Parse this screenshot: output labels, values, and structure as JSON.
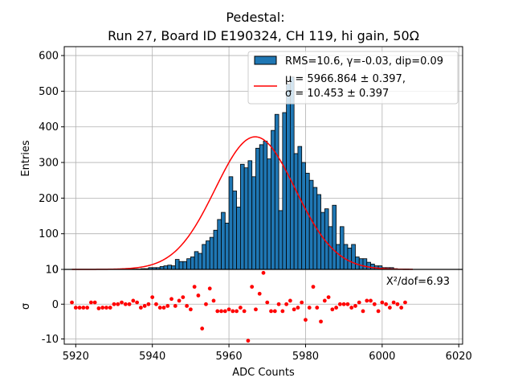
{
  "chart_data": {
    "type": "bar",
    "title_line1": "Pedestal:",
    "title_line2": "Run 27, Board ID E190324, CH 119, hi gain, 50Ω",
    "xlabel": "ADC Counts",
    "ylabel_top": "Entries",
    "ylabel_bottom": "σ",
    "xlim": [
      5917,
      6021
    ],
    "ylim_top": [
      0,
      625
    ],
    "ylim_bottom": [
      -11.5,
      10
    ],
    "xticks": [
      5920,
      5940,
      5960,
      5980,
      6000,
      6020
    ],
    "yticks_top": [
      0,
      100,
      200,
      300,
      400,
      500,
      600
    ],
    "yticks_bottom": [
      -10,
      0,
      10
    ],
    "grid": true,
    "colors": {
      "bar": "#1f77b4",
      "fit": "#ff0000",
      "residual": "#ff0000"
    },
    "legend": {
      "position": "top-right",
      "hist_label": "RMS=10.6, γ=-0.03, dip=0.09",
      "fit_label_line1": "μ = 5966.864 ± 0.397,",
      "fit_label_line2": "σ = 10.453 ± 0.397"
    },
    "chi2_label": "X²/dof=6.93",
    "fit": {
      "mu": 5966.864,
      "sigma": 10.453,
      "amplitude": 372
    },
    "histogram": {
      "bin_start": 5919,
      "bin_width": 1,
      "values": [
        0,
        0,
        0,
        0,
        0,
        0,
        0,
        0,
        0,
        0,
        0,
        0,
        0,
        0,
        0,
        1,
        1,
        1,
        2,
        2,
        5,
        5,
        5,
        8,
        10,
        12,
        10,
        28,
        22,
        22,
        30,
        35,
        50,
        45,
        70,
        80,
        90,
        110,
        140,
        160,
        130,
        260,
        220,
        175,
        295,
        285,
        305,
        260,
        340,
        350,
        360,
        310,
        390,
        435,
        165,
        440,
        520,
        540,
        325,
        345,
        300,
        270,
        250,
        230,
        210,
        160,
        170,
        120,
        180,
        70,
        120,
        70,
        60,
        70,
        35,
        30,
        30,
        20,
        15,
        10,
        10,
        5,
        5,
        5,
        2,
        1,
        1,
        1,
        0
      ]
    },
    "residuals": {
      "x": [
        5919,
        5920,
        5921,
        5922,
        5923,
        5924,
        5925,
        5926,
        5927,
        5928,
        5929,
        5930,
        5931,
        5932,
        5933,
        5934,
        5935,
        5936,
        5937,
        5938,
        5939,
        5940,
        5941,
        5942,
        5943,
        5944,
        5945,
        5946,
        5947,
        5948,
        5949,
        5950,
        5951,
        5952,
        5953,
        5954,
        5955,
        5956,
        5957,
        5958,
        5959,
        5960,
        5961,
        5962,
        5963,
        5964,
        5965,
        5966,
        5967,
        5968,
        5969,
        5970,
        5971,
        5972,
        5973,
        5974,
        5975,
        5976,
        5977,
        5978,
        5979,
        5980,
        5981,
        5982,
        5983,
        5984,
        5985,
        5986,
        5987,
        5988,
        5989,
        5990,
        5991,
        5992,
        5993,
        5994,
        5995,
        5996,
        5997,
        5998,
        5999,
        6000,
        6001,
        6002,
        6003,
        6004,
        6005,
        6006
      ],
      "y": [
        0.5,
        -1,
        -1,
        -1,
        -1,
        0.5,
        0.5,
        -1.2,
        -1,
        -1,
        -1,
        0,
        0,
        0.5,
        0,
        0,
        1,
        0.5,
        -1,
        -0.5,
        0,
        2,
        0,
        -1,
        -1,
        -0.5,
        1.5,
        -0.5,
        1,
        2,
        -0.5,
        -1.5,
        5,
        2.5,
        -7,
        0,
        4.5,
        1,
        -2,
        -2,
        -2,
        -1.5,
        -2,
        -2,
        -1,
        -2,
        -10.5,
        5,
        -1.5,
        3,
        9,
        0.5,
        -2,
        -2,
        0,
        -2,
        0,
        1,
        -1.5,
        -1,
        0.5,
        -4.5,
        -1,
        5,
        -1,
        -5,
        1,
        2,
        -1.5,
        -1,
        0,
        0,
        0,
        -1,
        -0.5,
        0.5,
        -2,
        1,
        1,
        0,
        -2,
        0.5,
        0,
        -1,
        0.5,
        0,
        -1,
        0.5
      ]
    }
  }
}
